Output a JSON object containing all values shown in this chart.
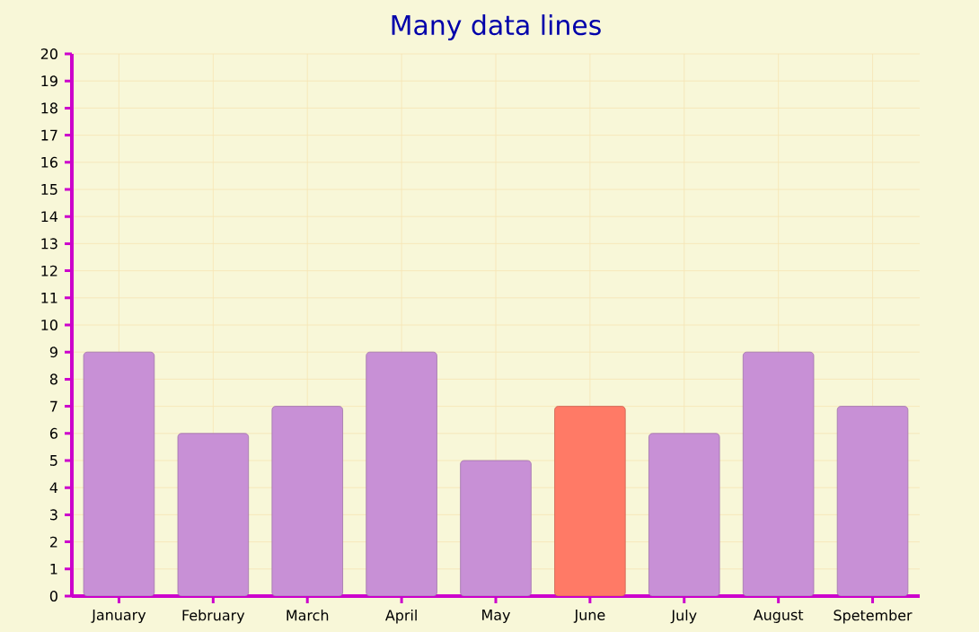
{
  "chart_data": {
    "type": "bar",
    "title": "Many data lines",
    "categories": [
      "January",
      "February",
      "March",
      "April",
      "May",
      "June",
      "July",
      "August",
      "Spetember"
    ],
    "values": [
      9,
      6,
      7,
      9,
      5,
      7,
      6,
      9,
      7
    ],
    "colors": [
      "#c890d6",
      "#c890d6",
      "#c890d6",
      "#c890d6",
      "#c890d6",
      "#ff7a66",
      "#c890d6",
      "#c890d6",
      "#c890d6"
    ],
    "ylim": [
      0,
      20
    ],
    "yticks": [
      0,
      1,
      2,
      3,
      4,
      5,
      6,
      7,
      8,
      9,
      10,
      11,
      12,
      13,
      14,
      15,
      16,
      17,
      18,
      19,
      20
    ],
    "grid": true
  }
}
